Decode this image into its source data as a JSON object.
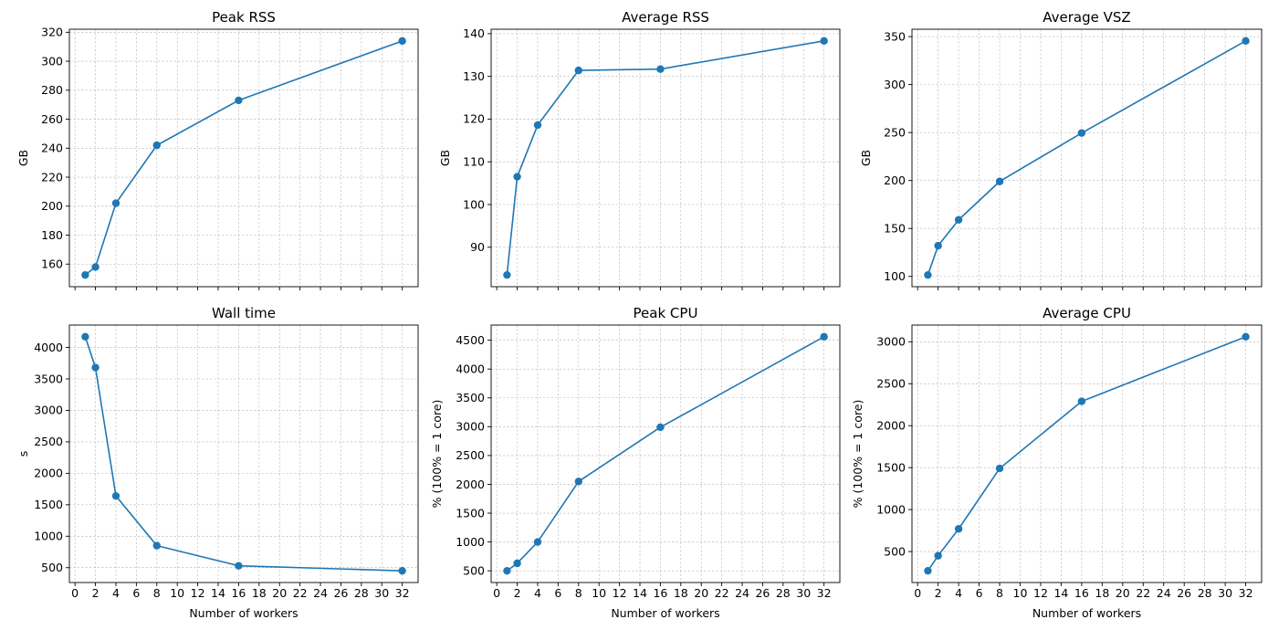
{
  "figure": {
    "shared_x_label": "Number of workers"
  },
  "chart_data": [
    {
      "type": "line",
      "title": "Peak RSS",
      "xlabel": "",
      "ylabel": "GB",
      "x": [
        1,
        2,
        4,
        8,
        16,
        32
      ],
      "series": [
        {
          "values": [
            152.5,
            158,
            202,
            242,
            273,
            314
          ],
          "color": "#1f77b4"
        }
      ],
      "xlim": [
        -0.55,
        33.55
      ],
      "ylim": [
        144.4,
        322.1
      ],
      "xticks": [
        0,
        2,
        4,
        6,
        8,
        10,
        12,
        14,
        16,
        18,
        20,
        22,
        24,
        26,
        28,
        30,
        32
      ],
      "yticks": [
        160,
        180,
        200,
        220,
        240,
        260,
        280,
        300,
        320
      ],
      "show_xtick_labels": false,
      "grid": true
    },
    {
      "type": "line",
      "title": "Average RSS",
      "xlabel": "",
      "ylabel": "GB",
      "x": [
        1,
        2,
        4,
        8,
        16,
        32
      ],
      "series": [
        {
          "values": [
            83.5,
            106.5,
            118.6,
            131.4,
            131.7,
            138.3
          ],
          "color": "#1f77b4"
        }
      ],
      "xlim": [
        -0.55,
        33.55
      ],
      "ylim": [
        80.76,
        141.04
      ],
      "xticks": [
        0,
        2,
        4,
        6,
        8,
        10,
        12,
        14,
        16,
        18,
        20,
        22,
        24,
        26,
        28,
        30,
        32
      ],
      "yticks": [
        90,
        100,
        110,
        120,
        130,
        140
      ],
      "show_xtick_labels": false,
      "grid": true
    },
    {
      "type": "line",
      "title": "Average VSZ",
      "xlabel": "",
      "ylabel": "GB",
      "x": [
        1,
        2,
        4,
        8,
        16,
        32
      ],
      "series": [
        {
          "values": [
            101.5,
            132,
            159,
            199,
            249.5,
            345.5
          ],
          "color": "#1f77b4"
        }
      ],
      "xlim": [
        -0.55,
        33.55
      ],
      "ylim": [
        89.3,
        357.7
      ],
      "xticks": [
        0,
        2,
        4,
        6,
        8,
        10,
        12,
        14,
        16,
        18,
        20,
        22,
        24,
        26,
        28,
        30,
        32
      ],
      "yticks": [
        100,
        150,
        200,
        250,
        300,
        350
      ],
      "show_xtick_labels": false,
      "grid": true
    },
    {
      "type": "line",
      "title": "Wall time",
      "xlabel": "Number of workers",
      "ylabel": "s",
      "x": [
        1,
        2,
        4,
        8,
        16,
        32
      ],
      "series": [
        {
          "values": [
            4170,
            3680,
            1640,
            850,
            530,
            450
          ],
          "color": "#1f77b4"
        }
      ],
      "xlim": [
        -0.55,
        33.55
      ],
      "ylim": [
        264,
        4356
      ],
      "xticks": [
        0,
        2,
        4,
        6,
        8,
        10,
        12,
        14,
        16,
        18,
        20,
        22,
        24,
        26,
        28,
        30,
        32
      ],
      "yticks": [
        500,
        1000,
        1500,
        2000,
        2500,
        3000,
        3500,
        4000
      ],
      "show_xtick_labels": true,
      "grid": true
    },
    {
      "type": "line",
      "title": "Peak CPU",
      "xlabel": "Number of workers",
      "ylabel": "% (100% = 1 core)",
      "x": [
        1,
        2,
        4,
        8,
        16,
        32
      ],
      "series": [
        {
          "values": [
            500,
            630,
            1000,
            2050,
            2990,
            4560
          ],
          "color": "#1f77b4"
        }
      ],
      "xlim": [
        -0.55,
        33.55
      ],
      "ylim": [
        297,
        4763
      ],
      "xticks": [
        0,
        2,
        4,
        6,
        8,
        10,
        12,
        14,
        16,
        18,
        20,
        22,
        24,
        26,
        28,
        30,
        32
      ],
      "yticks": [
        500,
        1000,
        1500,
        2000,
        2500,
        3000,
        3500,
        4000,
        4500
      ],
      "show_xtick_labels": true,
      "grid": true
    },
    {
      "type": "line",
      "title": "Average CPU",
      "xlabel": "Number of workers",
      "ylabel": "% (100% = 1 core)",
      "x": [
        1,
        2,
        4,
        8,
        16,
        32
      ],
      "series": [
        {
          "values": [
            270,
            450,
            770,
            1490,
            2290,
            3060
          ],
          "color": "#1f77b4"
        }
      ],
      "xlim": [
        -0.55,
        33.55
      ],
      "ylim": [
        130.5,
        3199.5
      ],
      "xticks": [
        0,
        2,
        4,
        6,
        8,
        10,
        12,
        14,
        16,
        18,
        20,
        22,
        24,
        26,
        28,
        30,
        32
      ],
      "yticks": [
        500,
        1000,
        1500,
        2000,
        2500,
        3000
      ],
      "show_xtick_labels": true,
      "grid": true
    }
  ]
}
